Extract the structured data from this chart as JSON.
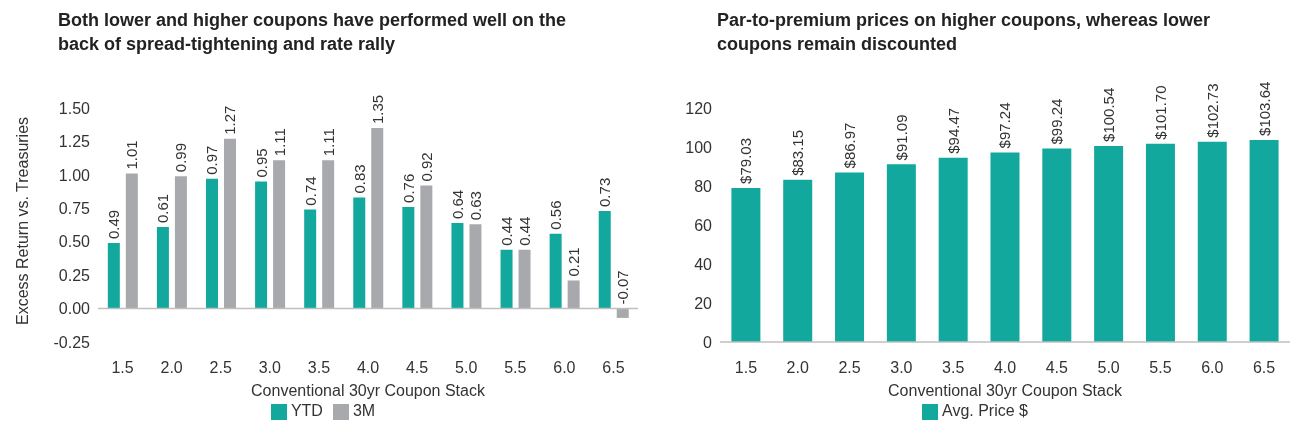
{
  "chart_data": [
    {
      "type": "bar",
      "title": "Both lower and higher coupons have performed well on the back of spread-tightening and rate rally",
      "xlabel": "Conventional 30yr Coupon Stack",
      "ylabel": "Excess Return vs. Treasuries",
      "categories": [
        "1.5",
        "2.0",
        "2.5",
        "3.0",
        "3.5",
        "4.0",
        "4.5",
        "5.0",
        "5.5",
        "6.0",
        "6.5"
      ],
      "series": [
        {
          "name": "YTD",
          "color": "#13a89e",
          "values": [
            0.49,
            0.61,
            0.97,
            0.95,
            0.74,
            0.83,
            0.76,
            0.64,
            0.44,
            0.56,
            0.73
          ]
        },
        {
          "name": "3M",
          "color": "#a7a9ac",
          "values": [
            1.01,
            0.99,
            1.27,
            1.11,
            1.11,
            1.35,
            0.92,
            0.63,
            0.44,
            0.21,
            -0.07
          ]
        }
      ],
      "ylim": [
        -0.25,
        1.5
      ],
      "yticks": [
        {
          "value": -0.25,
          "label": "-0.25"
        },
        {
          "value": 0,
          "label": "0.00"
        },
        {
          "value": 0.25,
          "label": "0.25"
        },
        {
          "value": 0.5,
          "label": "0.50"
        },
        {
          "value": 0.75,
          "label": "0.75"
        },
        {
          "value": 1,
          "label": "1.00"
        },
        {
          "value": 1.25,
          "label": "1.25"
        },
        {
          "value": 1.5,
          "label": "1.50"
        }
      ],
      "ref_lines": [
        {
          "axis": "y",
          "value": 0,
          "color": "#bfbfbf"
        }
      ],
      "data_labels": true,
      "legend": "bottom"
    },
    {
      "type": "bar",
      "title": "Par-to-premium prices on higher coupons, whereas lower coupons remain discounted",
      "xlabel": "Conventional 30yr Coupon Stack",
      "categories": [
        "1.5",
        "2.0",
        "2.5",
        "3.0",
        "3.5",
        "4.0",
        "4.5",
        "5.0",
        "5.5",
        "6.0",
        "6.5"
      ],
      "series": [
        {
          "name": "Avg. Price $",
          "color": "#13a89e",
          "values": [
            79.03,
            83.15,
            86.97,
            91.09,
            94.47,
            97.24,
            99.24,
            100.54,
            101.7,
            102.73,
            103.64
          ],
          "value_labels": [
            "$79.03",
            "$83.15",
            "$86.97",
            "$91.09",
            "$94.47",
            "$97.24",
            "$99.24",
            "$100.54",
            "$101.70",
            "$102.73",
            "$103.64"
          ]
        }
      ],
      "ylim": [
        0,
        120
      ],
      "yticks": [
        0,
        20,
        40,
        60,
        80,
        100,
        120
      ],
      "legend": "bottom"
    }
  ]
}
